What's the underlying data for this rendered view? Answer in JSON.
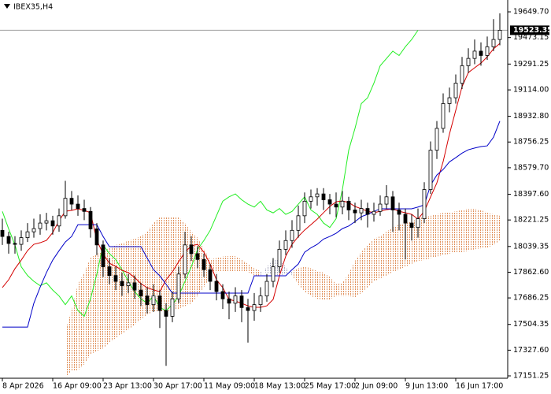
{
  "chart_data": {
    "type": "candlestick",
    "title": "IBEX35,H4",
    "categories": [
      "8 Apr 2026",
      null,
      null,
      null,
      null,
      null,
      null,
      null,
      "16 Apr 09:00",
      null,
      null,
      null,
      null,
      null,
      null,
      null,
      "23 Apr 13:00",
      null,
      null,
      null,
      null,
      null,
      null,
      null,
      "30 Apr 17:00",
      null,
      null,
      null,
      null,
      null,
      null,
      null,
      "11 May 09:00",
      null,
      null,
      null,
      null,
      null,
      null,
      null,
      "18 May 13:00",
      null,
      null,
      null,
      null,
      null,
      null,
      null,
      "25 May 17:00",
      null,
      null,
      null,
      null,
      null,
      null,
      null,
      "2 Jun 09:00",
      null,
      null,
      null,
      null,
      null,
      null,
      null,
      "9 Jun 13:00",
      null,
      null,
      null,
      null,
      null,
      null,
      null,
      "16 Jun 17:00",
      null,
      null,
      null,
      null,
      null,
      null,
      null
    ],
    "open": [
      18150,
      18108,
      18060,
      18054,
      18100,
      18140,
      18162,
      18200,
      18216,
      18180,
      18250,
      18370,
      18330,
      18300,
      18280,
      18160,
      18050,
      17900,
      17840,
      17800,
      17770,
      17790,
      17740,
      17700,
      17640,
      17700,
      17600,
      17560,
      17680,
      17850,
      18050,
      17990,
      17950,
      17880,
      17800,
      17730,
      17680,
      17650,
      17700,
      17620,
      17600,
      17640,
      17700,
      17800,
      17900,
      18020,
      18080,
      18150,
      18250,
      18350,
      18380,
      18400,
      18360,
      18330,
      18310,
      18350,
      18290,
      18270,
      18300,
      18260,
      18280,
      18330,
      18380,
      18290,
      18260,
      18200,
      18170,
      18230,
      18430,
      18700,
      18850,
      19020,
      19060,
      19160,
      19280,
      19330,
      19380,
      19350,
      19410,
      19460
    ],
    "high": [
      18230,
      18140,
      18110,
      18150,
      18200,
      18230,
      18260,
      18270,
      18250,
      18300,
      18490,
      18420,
      18390,
      18360,
      18310,
      18200,
      18080,
      17960,
      17900,
      17860,
      17850,
      17840,
      17790,
      17760,
      17780,
      17740,
      17650,
      17730,
      17900,
      18140,
      18110,
      18040,
      17990,
      17920,
      17850,
      17780,
      17730,
      17760,
      17740,
      17680,
      17720,
      17760,
      17850,
      17960,
      18080,
      18150,
      18220,
      18320,
      18410,
      18430,
      18440,
      18440,
      18400,
      18410,
      18420,
      18380,
      18340,
      18360,
      18340,
      18340,
      18390,
      18460,
      18420,
      18340,
      18300,
      18260,
      18300,
      18480,
      18760,
      18900,
      19090,
      19130,
      19220,
      19340,
      19400,
      19460,
      19440,
      19480,
      19600,
      19640
    ],
    "low": [
      18050,
      17990,
      17990,
      18010,
      18070,
      18100,
      18120,
      18150,
      18120,
      18140,
      18230,
      18290,
      18250,
      18220,
      18100,
      17980,
      17830,
      17780,
      17740,
      17700,
      17720,
      17680,
      17630,
      17580,
      17590,
      17480,
      17220,
      17520,
      17650,
      17820,
      17940,
      17890,
      17830,
      17740,
      17670,
      17610,
      17540,
      17590,
      17520,
      17380,
      17530,
      17590,
      17660,
      17760,
      17860,
      17980,
      18030,
      18100,
      18200,
      18300,
      18320,
      18290,
      18260,
      18240,
      18260,
      18220,
      18200,
      18220,
      18170,
      18210,
      18250,
      18300,
      18140,
      18150,
      17950,
      18080,
      18100,
      18200,
      18400,
      18640,
      18820,
      18960,
      19020,
      19120,
      19230,
      19290,
      19280,
      19320,
      19380,
      19420
    ],
    "close": [
      18108,
      18060,
      18054,
      18100,
      18140,
      18162,
      18200,
      18216,
      18180,
      18250,
      18370,
      18330,
      18300,
      18280,
      18160,
      18050,
      17900,
      17840,
      17800,
      17770,
      17790,
      17740,
      17700,
      17640,
      17700,
      17600,
      17560,
      17680,
      17850,
      18050,
      17990,
      17950,
      17880,
      17800,
      17730,
      17680,
      17650,
      17700,
      17620,
      17600,
      17640,
      17700,
      17800,
      17900,
      18020,
      18080,
      18150,
      18250,
      18350,
      18380,
      18400,
      18360,
      18330,
      18310,
      18350,
      18290,
      18270,
      18300,
      18260,
      18280,
      18330,
      18380,
      18290,
      18260,
      18200,
      18170,
      18230,
      18430,
      18700,
      18850,
      19020,
      19060,
      19160,
      19280,
      19330,
      19380,
      19350,
      19410,
      19460,
      19523.35
    ],
    "tenkan": {
      "color": "#d40000",
      "values": [
        17757,
        17811,
        17887,
        17946,
        18011,
        18054,
        18065,
        18081,
        18135,
        18216,
        18281,
        18287,
        18298,
        18287,
        18271,
        18081,
        17989,
        17924,
        17903,
        17876,
        17860,
        17827,
        17784,
        17757,
        17741,
        17730,
        17811,
        17865,
        17935,
        18000,
        18043,
        18054,
        18000,
        17919,
        17811,
        17757,
        17676,
        17665,
        17649,
        17632,
        17622,
        17622,
        17632,
        17676,
        17838,
        17973,
        18054,
        18108,
        18152,
        18189,
        18227,
        18271,
        18314,
        18346,
        18352,
        18341,
        18314,
        18298,
        18281,
        18271,
        18281,
        18292,
        18298,
        18281,
        18271,
        18260,
        18227,
        18281,
        18379,
        18476,
        18622,
        18811,
        18974,
        19136,
        19233,
        19266,
        19298,
        19341,
        19396,
        19433
      ]
    },
    "kijun": {
      "color": "#0000c8",
      "values": [
        17486,
        17486,
        17486,
        17486,
        17486,
        17650,
        17760,
        17860,
        17946,
        18010,
        18070,
        18108,
        18189,
        18189,
        18189,
        18189,
        18108,
        18038,
        18038,
        18038,
        18038,
        18038,
        18038,
        17960,
        17880,
        17838,
        17780,
        17719,
        17719,
        17719,
        17719,
        17719,
        17719,
        17719,
        17719,
        17719,
        17719,
        17719,
        17719,
        17719,
        17838,
        17838,
        17838,
        17838,
        17838,
        17838,
        17880,
        17919,
        18000,
        18030,
        18054,
        18090,
        18108,
        18130,
        18162,
        18180,
        18210,
        18244,
        18260,
        18280,
        18298,
        18298,
        18298,
        18298,
        18298,
        18298,
        18310,
        18325,
        18460,
        18530,
        18568,
        18620,
        18649,
        18680,
        18703,
        18715,
        18725,
        18730,
        18790,
        18900
      ]
    },
    "chikou": {
      "color": "#22ee22",
      "values": [
        18280,
        18160,
        18050,
        17900,
        17840,
        17800,
        17770,
        17790,
        17740,
        17700,
        17640,
        17700,
        17600,
        17560,
        17680,
        17850,
        18050,
        17990,
        17950,
        17880,
        17800,
        17730,
        17680,
        17650,
        17700,
        17620,
        17600,
        17640,
        17700,
        17800,
        17900,
        18020,
        18080,
        18150,
        18250,
        18350,
        18380,
        18400,
        18360,
        18330,
        18310,
        18350,
        18290,
        18270,
        18300,
        18260,
        18280,
        18330,
        18380,
        18290,
        18260,
        18200,
        18170,
        18230,
        18430,
        18700,
        18850,
        19020,
        19060,
        19160,
        19280,
        19330,
        19380,
        19350,
        19410,
        19460,
        19523.35,
        null,
        null,
        null,
        null,
        null,
        null,
        null,
        null,
        null,
        null,
        null,
        null,
        null
      ]
    },
    "cloud": {
      "color_up": "#e0905a",
      "color_down": "#a8a8c0",
      "span_a": [
        null,
        null,
        null,
        null,
        null,
        null,
        null,
        null,
        null,
        null,
        17460,
        17600,
        17780,
        17860,
        17960,
        17990,
        18000,
        18030,
        18050,
        18060,
        18080,
        18090,
        18110,
        18140,
        18200,
        18240,
        18240,
        18240,
        18240,
        18200,
        18140,
        18100,
        18020,
        17950,
        17960,
        17970,
        17973,
        17973,
        17950,
        17920,
        17890,
        17870,
        17860,
        17850,
        17840,
        17850,
        17870,
        17890,
        17900,
        17890,
        17870,
        17860,
        17830,
        17780,
        17790,
        17850,
        17940,
        18000,
        18050,
        18090,
        18110,
        18140,
        18170,
        18190,
        18200,
        18210,
        18230,
        18244,
        18250,
        18260,
        18270,
        18271,
        18280,
        18290,
        18298,
        18298,
        18290,
        18271,
        18260,
        18250
      ],
      "span_b": [
        null,
        null,
        null,
        null,
        null,
        null,
        null,
        null,
        null,
        null,
        17135,
        17189,
        17190,
        17230,
        17300,
        17320,
        17340,
        17380,
        17410,
        17440,
        17470,
        17500,
        17540,
        17570,
        17595,
        17595,
        17595,
        17600,
        17610,
        17630,
        17649,
        17700,
        17760,
        17830,
        17865,
        17865,
        17865,
        17865,
        17865,
        17865,
        17840,
        17840,
        17900,
        17946,
        17946,
        17900,
        17840,
        17780,
        17730,
        17700,
        17680,
        17676,
        17676,
        17700,
        17700,
        17700,
        17690,
        17720,
        17760,
        17800,
        17820,
        17840,
        17865,
        17880,
        17900,
        17920,
        17940,
        17946,
        17960,
        17970,
        17980,
        17990,
        18000,
        18000,
        18010,
        18020,
        18027,
        18030,
        18050,
        18080
      ]
    },
    "last_price": 19523.35,
    "ylim": [
      17135,
      19731
    ],
    "yticks": [
      {
        "value": 19649.7,
        "label": "19649.70"
      },
      19473.15,
      19291.25,
      {
        "value": 19114.0,
        "label": "19114.00"
      },
      {
        "value": 18932.8,
        "label": "18932.80"
      },
      18756.25,
      {
        "value": 18579.7,
        "label": "18579.70"
      },
      {
        "value": 18397.6,
        "label": "18397.60"
      },
      18221.25,
      18039.35,
      {
        "value": 17862.6,
        "label": "17862.60"
      },
      17686.25,
      17504.35,
      {
        "value": 17327.6,
        "label": "17327.60"
      },
      17151.25
    ]
  }
}
